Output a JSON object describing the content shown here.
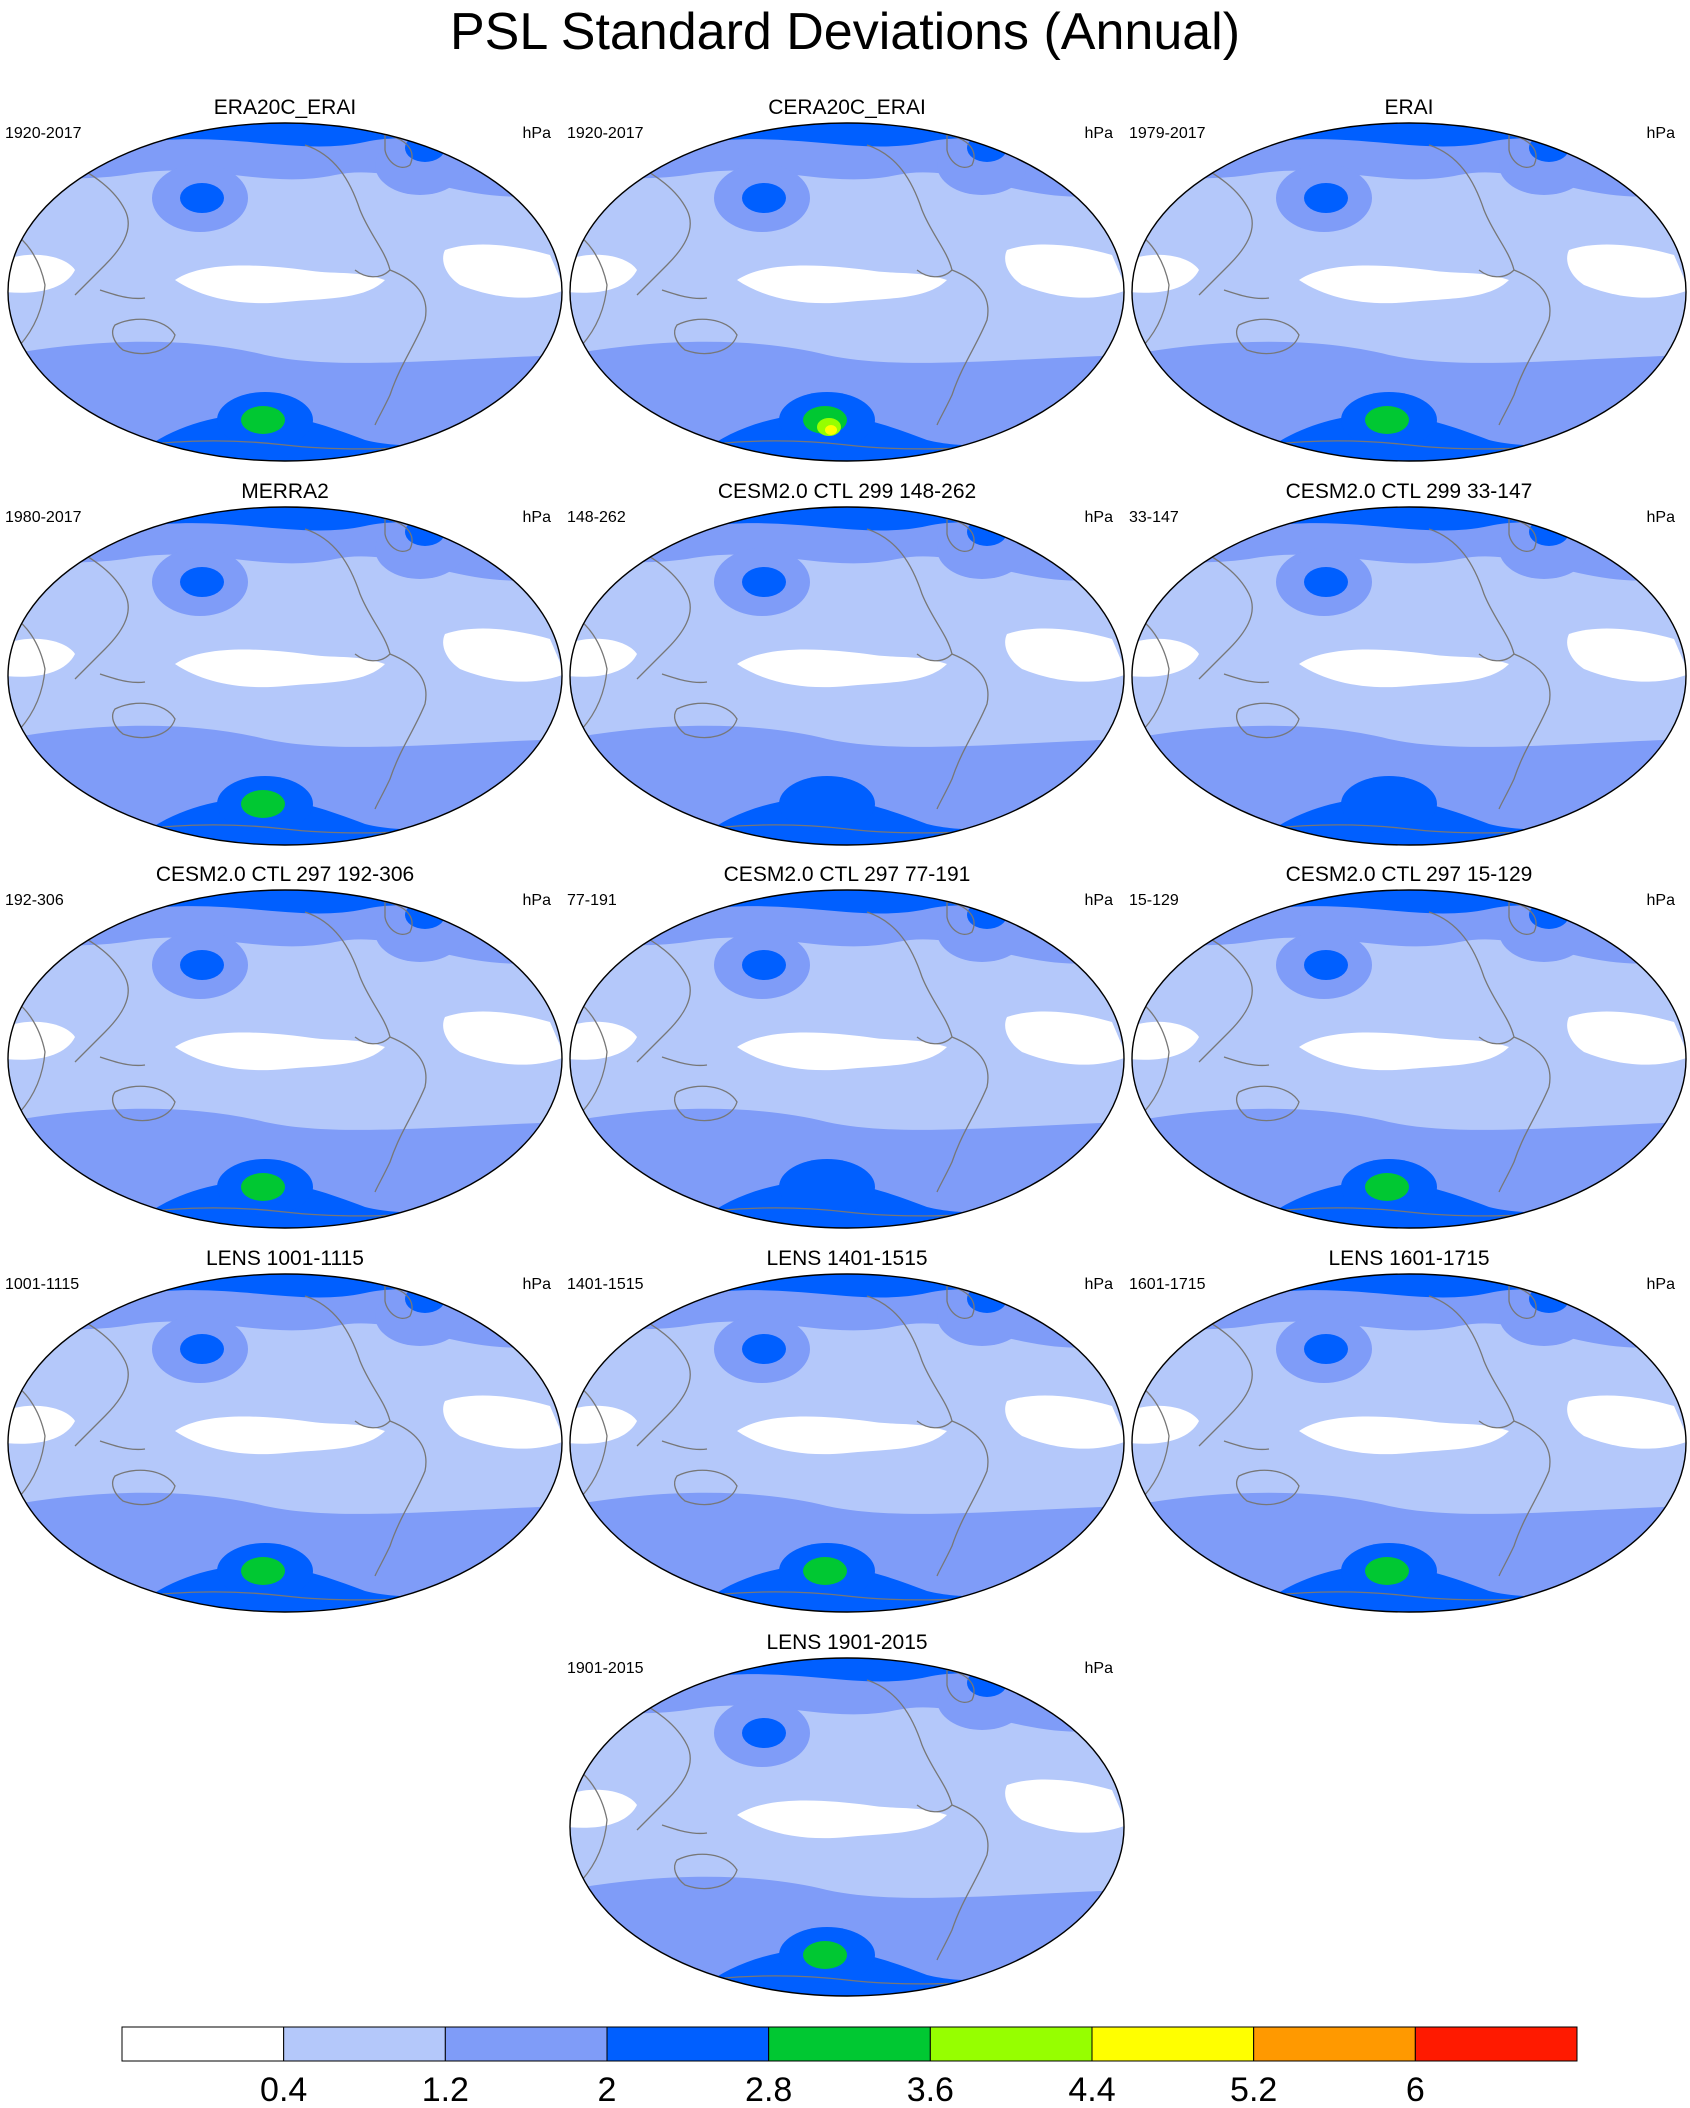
{
  "title": "PSL Standard Deviations (Annual)",
  "units": "hPa",
  "colors": {
    "ocean_base": "#b4c8fa",
    "land_low": "#ffffff",
    "band_mid": "#7f9cf8",
    "band_high": "#005fff",
    "peak_green": "#00c832",
    "peak_yellowgreen": "#96ff00",
    "peak_yellow": "#ffff00",
    "coast": "#777777"
  },
  "panels": [
    {
      "title": "ERA20C_ERAI",
      "period": "1920-2017",
      "peak": "green"
    },
    {
      "title": "CERA20C_ERAI",
      "period": "1920-2017",
      "peak": "yellow"
    },
    {
      "title": "ERAI",
      "period": "1979-2017",
      "peak": "green"
    },
    {
      "title": "MERRA2",
      "period": "1980-2017",
      "peak": "green"
    },
    {
      "title": "CESM2.0 CTL 299 148-262",
      "period": "148-262",
      "peak": "none"
    },
    {
      "title": "CESM2.0 CTL 299 33-147",
      "period": "33-147",
      "peak": "none"
    },
    {
      "title": "CESM2.0 CTL 297 192-306",
      "period": "192-306",
      "peak": "green"
    },
    {
      "title": "CESM2.0 CTL 297 77-191",
      "period": "77-191",
      "peak": "none"
    },
    {
      "title": "CESM2.0 CTL 297 15-129",
      "period": "15-129",
      "peak": "green"
    },
    {
      "title": "LENS 1001-1115",
      "period": "1001-1115",
      "peak": "green"
    },
    {
      "title": "LENS 1401-1515",
      "period": "1401-1515",
      "peak": "green"
    },
    {
      "title": "LENS 1601-1715",
      "period": "1601-1715",
      "peak": "green"
    },
    {
      "title": "LENS 1901-2015",
      "period": "1901-2015",
      "peak": "green"
    }
  ],
  "colorbar": {
    "labels": [
      "0.4",
      "1.2",
      "2",
      "2.8",
      "3.6",
      "4.4",
      "5.2",
      "6"
    ],
    "colors": [
      "#ffffff",
      "#b4c8fa",
      "#7f9cf8",
      "#005fff",
      "#00c832",
      "#96ff00",
      "#ffff00",
      "#ff9900",
      "#ff1a00"
    ]
  }
}
